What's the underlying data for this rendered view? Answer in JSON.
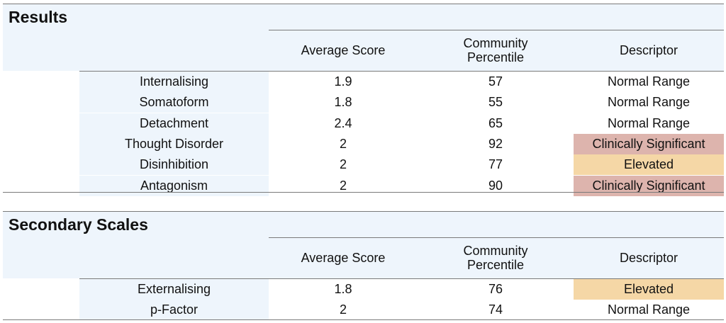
{
  "results": {
    "title": "Results",
    "headers": {
      "avg": "Average Score",
      "pct": "Community\nPercentile",
      "desc": "Descriptor"
    },
    "rows": [
      {
        "label": "Internalising",
        "avg": "1.9",
        "pct": "57",
        "desc": "Normal Range",
        "level": "normal"
      },
      {
        "label": "Somatoform",
        "avg": "1.8",
        "pct": "55",
        "desc": "Normal Range",
        "level": "normal"
      },
      {
        "label": "Detachment",
        "avg": "2.4",
        "pct": "65",
        "desc": "Normal Range",
        "level": "normal"
      },
      {
        "label": "Thought Disorder",
        "avg": "2",
        "pct": "92",
        "desc": "Clinically Significant",
        "level": "significant"
      },
      {
        "label": "Disinhibition",
        "avg": "2",
        "pct": "77",
        "desc": "Elevated",
        "level": "elevated"
      },
      {
        "label": "Antagonism",
        "avg": "2",
        "pct": "90",
        "desc": "Clinically Significant",
        "level": "significant"
      }
    ]
  },
  "secondary": {
    "title": "Secondary Scales",
    "headers": {
      "avg": "Average Score",
      "pct": "Community\nPercentile",
      "desc": "Descriptor"
    },
    "rows": [
      {
        "label": "Externalising",
        "avg": "1.8",
        "pct": "76",
        "desc": "Elevated",
        "level": "elevated"
      },
      {
        "label": "p-Factor",
        "avg": "2",
        "pct": "74",
        "desc": "Normal Range",
        "level": "normal"
      }
    ]
  },
  "colors": {
    "significant": "#ddb4ad",
    "elevated": "#f5d7a6",
    "normal": "#ffffff",
    "header_bg": "#eef5fc"
  }
}
